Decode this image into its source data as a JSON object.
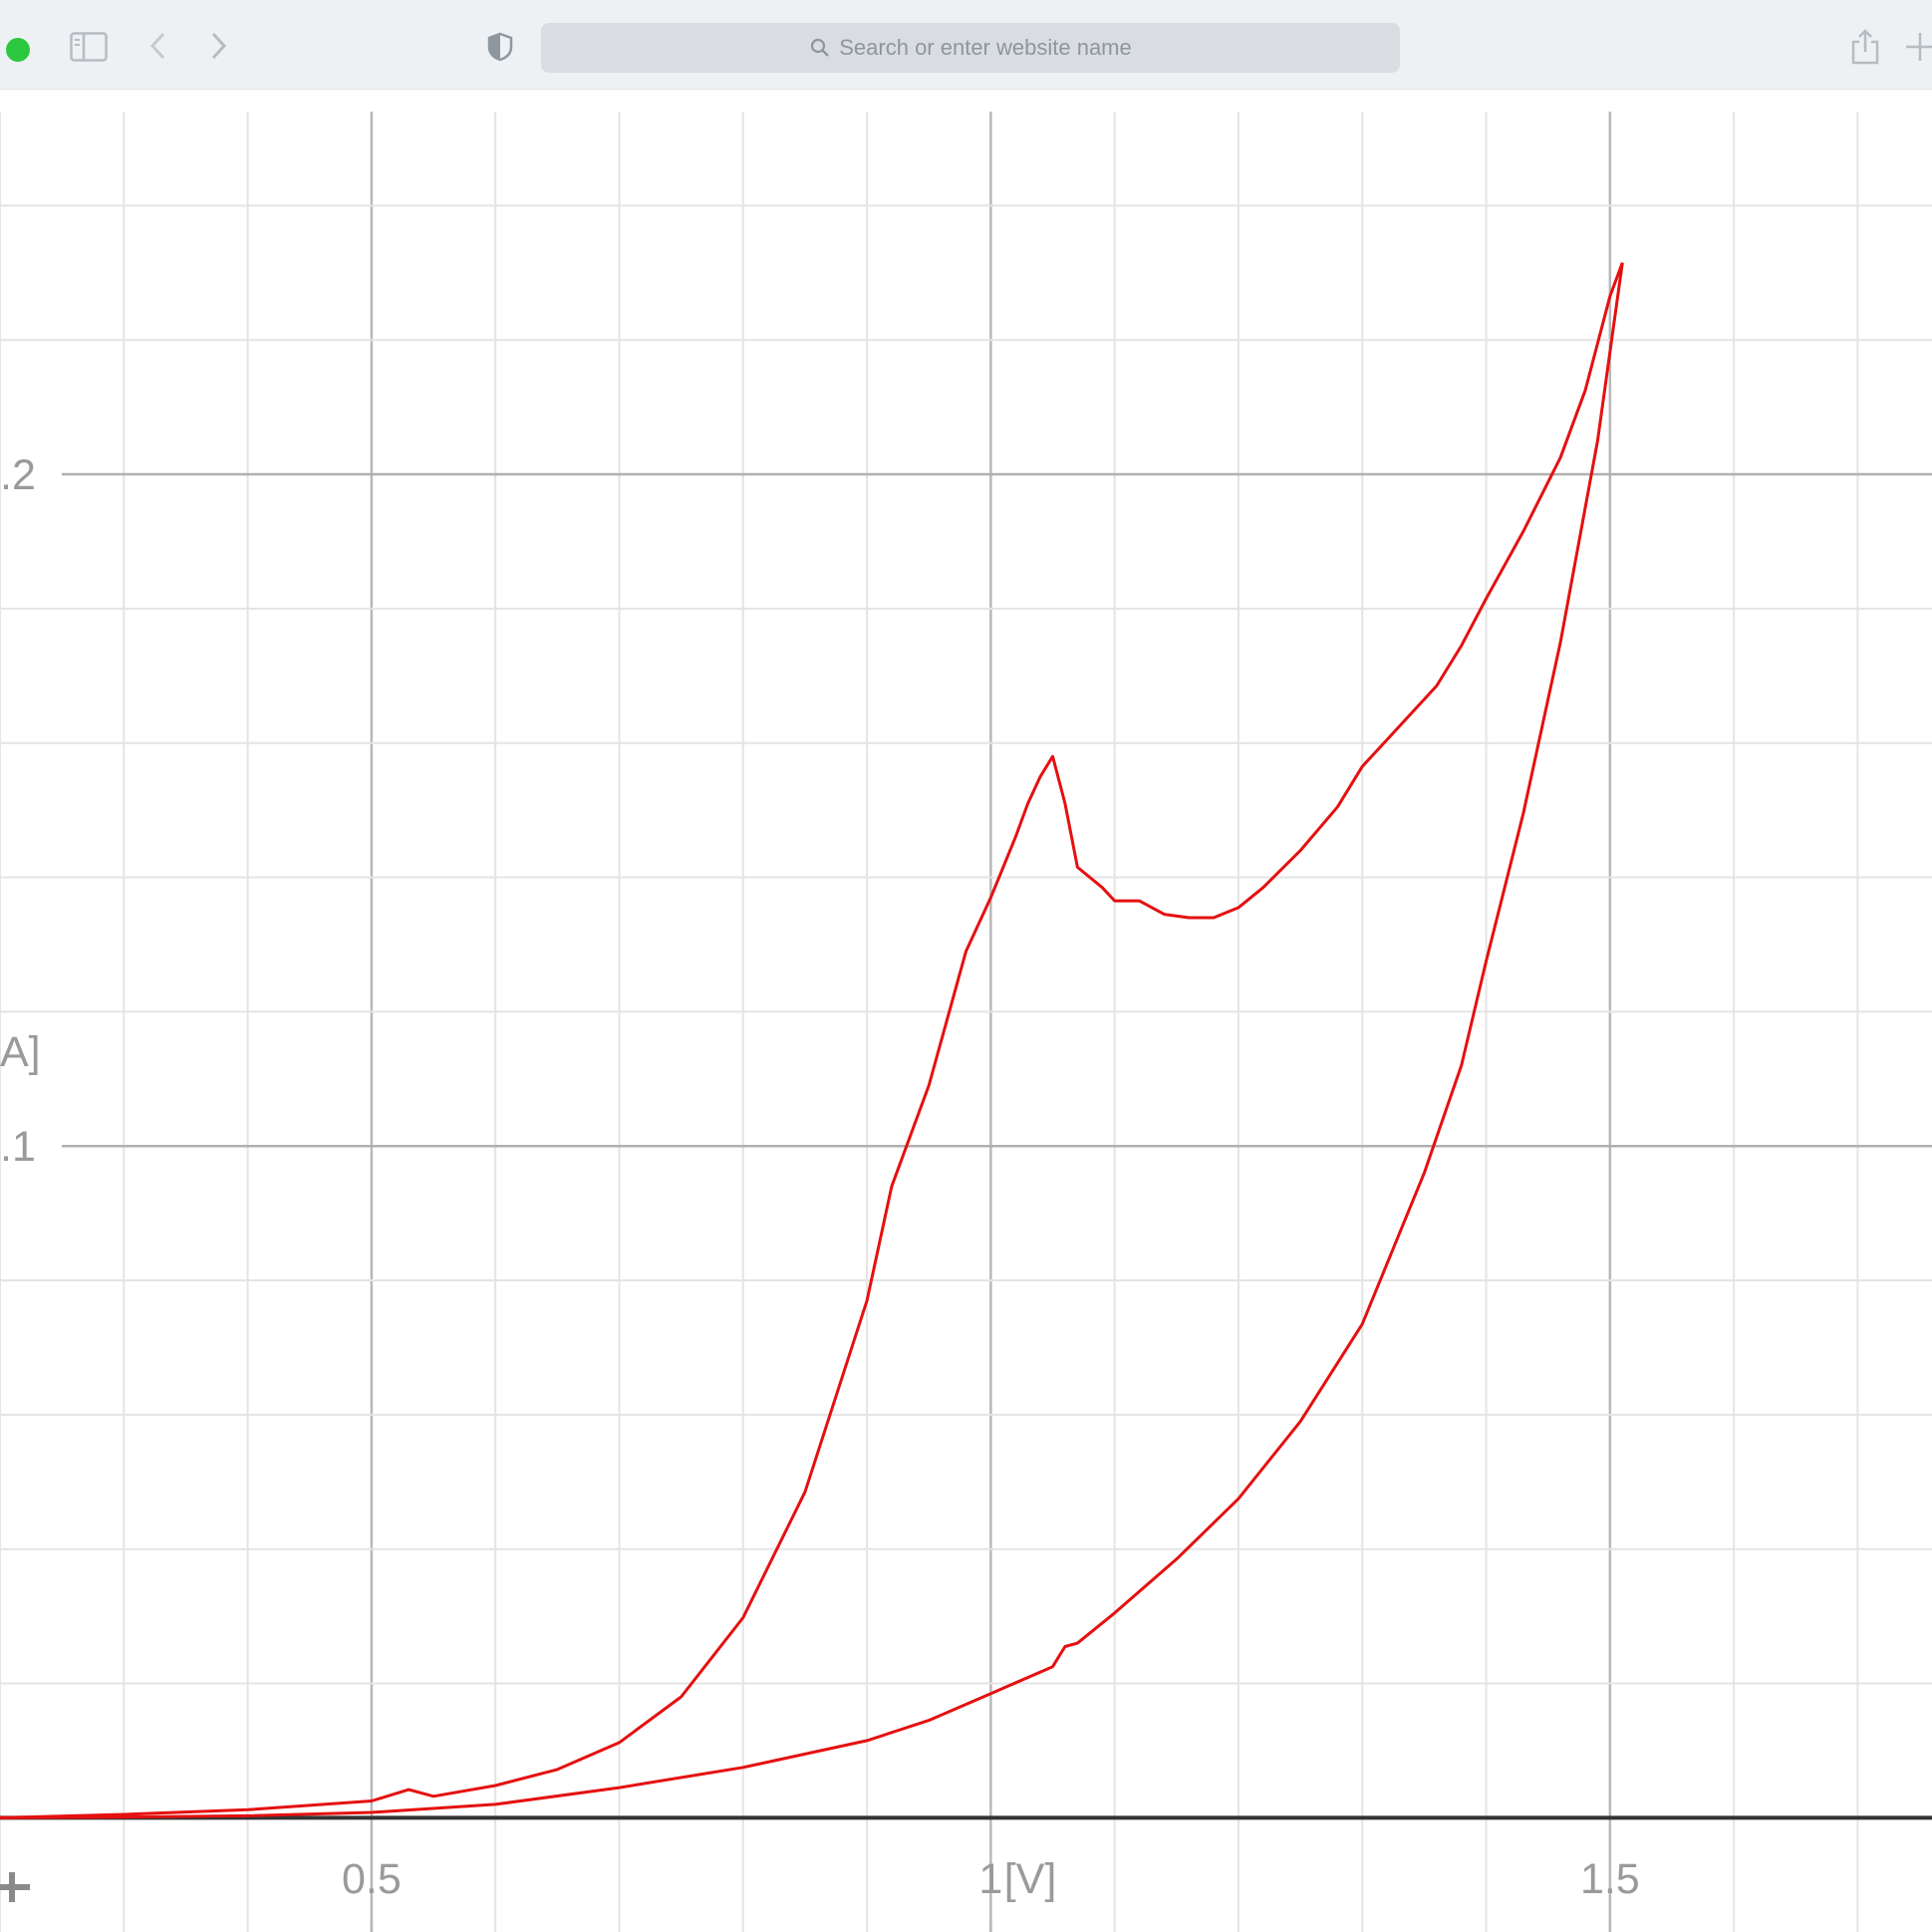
{
  "browser": {
    "address_placeholder": "Search or enter website name",
    "icons": [
      "sidebar-icon",
      "back-icon",
      "forward-icon",
      "shield-icon",
      "search-icon",
      "share-icon",
      "plus-icon"
    ],
    "traffic_light_color": "#2bc840"
  },
  "chart_data": {
    "type": "line",
    "title": "",
    "xlabel": "[V]",
    "ylabel": "A]",
    "xlim": [
      0.2,
      1.76
    ],
    "ylim": [
      -0.017,
      0.254
    ],
    "x_ticks": [
      {
        "value": 0.5,
        "label": "0.5"
      },
      {
        "value": 1,
        "label": "1"
      },
      {
        "value": 1.5,
        "label": "1.5"
      }
    ],
    "y_ticks": [
      {
        "value": 0.1,
        "label": ".1"
      },
      {
        "value": 0.2,
        "label": ".2"
      }
    ],
    "grid": true,
    "line_color": "#e51010",
    "zero_line_color": "#333333",
    "series": [
      {
        "points": [
          [
            0.2,
            0.0
          ],
          [
            0.3,
            0.0005
          ],
          [
            0.4,
            0.0012
          ],
          [
            0.5,
            0.0025
          ],
          [
            0.53,
            0.0042
          ],
          [
            0.55,
            0.0032
          ],
          [
            0.6,
            0.0048
          ],
          [
            0.65,
            0.0072
          ],
          [
            0.7,
            0.0112
          ],
          [
            0.75,
            0.018
          ],
          [
            0.8,
            0.0298
          ],
          [
            0.85,
            0.0485
          ],
          [
            0.9,
            0.077
          ],
          [
            0.92,
            0.094
          ],
          [
            0.95,
            0.109
          ],
          [
            0.98,
            0.129
          ],
          [
            1.0,
            0.137
          ],
          [
            1.02,
            0.146
          ],
          [
            1.03,
            0.151
          ],
          [
            1.04,
            0.155
          ],
          [
            1.05,
            0.158
          ],
          [
            1.06,
            0.151
          ],
          [
            1.07,
            0.1415
          ],
          [
            1.09,
            0.1385
          ],
          [
            1.1,
            0.1365
          ],
          [
            1.12,
            0.1365
          ],
          [
            1.14,
            0.1345
          ],
          [
            1.16,
            0.134
          ],
          [
            1.18,
            0.134
          ],
          [
            1.2,
            0.1355
          ],
          [
            1.22,
            0.1385
          ],
          [
            1.25,
            0.144
          ],
          [
            1.28,
            0.1505
          ],
          [
            1.3,
            0.1565
          ],
          [
            1.33,
            0.1625
          ],
          [
            1.36,
            0.1685
          ],
          [
            1.38,
            0.1745
          ],
          [
            1.4,
            0.1815
          ],
          [
            1.43,
            0.1915
          ],
          [
            1.46,
            0.2025
          ],
          [
            1.48,
            0.2125
          ],
          [
            1.5,
            0.2265
          ],
          [
            1.51,
            0.2315
          ]
        ]
      },
      {
        "points": [
          [
            1.51,
            0.2315
          ],
          [
            1.49,
            0.205
          ],
          [
            1.46,
            0.175
          ],
          [
            1.43,
            0.1495
          ],
          [
            1.4,
            0.1275
          ],
          [
            1.38,
            0.112
          ],
          [
            1.35,
            0.096
          ],
          [
            1.3,
            0.0735
          ],
          [
            1.25,
            0.059
          ],
          [
            1.2,
            0.0475
          ],
          [
            1.15,
            0.0385
          ],
          [
            1.1,
            0.0305
          ],
          [
            1.07,
            0.026
          ],
          [
            1.06,
            0.0255
          ],
          [
            1.05,
            0.0225
          ],
          [
            1.0,
            0.0185
          ],
          [
            0.95,
            0.0145
          ],
          [
            0.9,
            0.0115
          ],
          [
            0.8,
            0.0075
          ],
          [
            0.7,
            0.0045
          ],
          [
            0.6,
            0.002
          ],
          [
            0.5,
            0.0008
          ],
          [
            0.4,
            0.0003
          ],
          [
            0.3,
            0.0001
          ],
          [
            0.2,
            0.0
          ]
        ]
      }
    ]
  }
}
